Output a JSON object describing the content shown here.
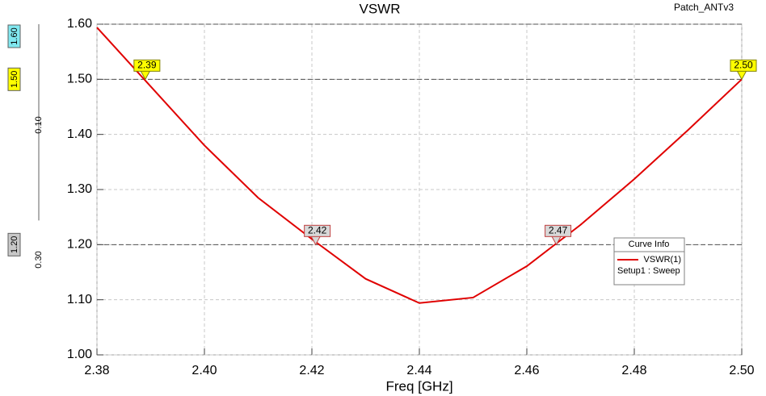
{
  "chart_data": {
    "type": "line",
    "title": "VSWR",
    "design_name": "Patch_ANTv3",
    "xlabel": "Freq [GHz]",
    "x": [
      2.38,
      2.39,
      2.4,
      2.41,
      2.42,
      2.43,
      2.44,
      2.45,
      2.46,
      2.47,
      2.48,
      2.49,
      2.5
    ],
    "series": [
      {
        "name": "VSWR(1)",
        "color": "#e00000",
        "values": [
          1.594,
          1.487,
          1.38,
          1.285,
          1.21,
          1.138,
          1.094,
          1.104,
          1.161,
          1.236,
          1.319,
          1.408,
          1.5
        ]
      }
    ],
    "legend_title": "Curve Info",
    "legend_subtitle": "Setup1 : Sweep",
    "xlim": [
      2.38,
      2.5
    ],
    "ylim": [
      1.0,
      1.6
    ],
    "xticks": [
      2.38,
      {
        "value": 2.4,
        "label": "2.40"
      },
      2.42,
      2.44,
      2.46,
      2.48,
      {
        "value": 2.5,
        "label": "2.50"
      }
    ],
    "yticks": [
      {
        "value": 1,
        "label": "1.00"
      },
      {
        "value": 1.1,
        "label": "1.10"
      },
      {
        "value": 1.2,
        "label": "1.20"
      },
      {
        "value": 1.3,
        "label": "1.30"
      },
      {
        "value": 1.4,
        "label": "1.40"
      },
      {
        "value": 1.5,
        "label": "1.50"
      },
      {
        "value": 1.6,
        "label": "1.60"
      }
    ],
    "grid": true,
    "markers": [
      {
        "x": 2.389,
        "y": 1.5,
        "label": "2.39",
        "color": "#ffff00"
      },
      {
        "x": 2.4207,
        "y": 1.2,
        "label": "2.42",
        "color": "#d8d8d8"
      },
      {
        "x": 2.4655,
        "y": 1.2,
        "label": "2.47",
        "color": "#d8d8d8"
      },
      {
        "x": 2.5,
        "y": 1.5,
        "label": "2.50",
        "color": "#ffff00"
      }
    ],
    "y_markers": [
      {
        "value": 1.6,
        "label": "1.60",
        "color": "#80e8f0"
      },
      {
        "value": 1.5,
        "label": "1.50",
        "color": "#ffff00"
      },
      {
        "value": 1.2,
        "label": "1.20",
        "color": "#c8c8c8"
      }
    ],
    "y_deltas": [
      {
        "value": 0.1,
        "label": "0.10"
      },
      {
        "value": 0.3,
        "label": "0.30"
      }
    ]
  }
}
